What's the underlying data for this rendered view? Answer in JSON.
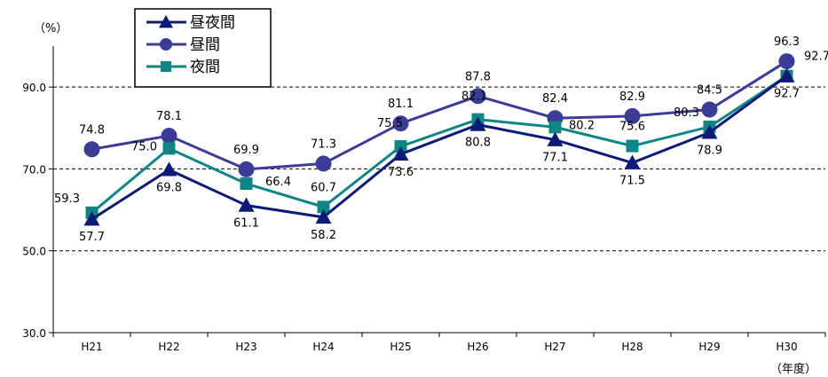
{
  "chart_data": {
    "type": "line",
    "ylabel": "（%）",
    "xlabel": "（年度）",
    "categories": [
      "H21",
      "H22",
      "H23",
      "H24",
      "H25",
      "H26",
      "H27",
      "H28",
      "H29",
      "H30"
    ],
    "ylim": [
      30,
      100
    ],
    "yticks": [
      "30.0",
      "50.0",
      "70.0",
      "90.0"
    ],
    "grid": "dashed horizontal at 50, 70, 90",
    "legend_position": "top-left",
    "series": [
      {
        "name": "昼夜間",
        "marker": "triangle",
        "color": "#0d1a78",
        "values": [
          57.7,
          69.8,
          61.1,
          58.2,
          73.6,
          80.8,
          77.1,
          71.5,
          78.9,
          92.7
        ],
        "labels": [
          "57.7",
          "69.8",
          "61.1",
          "58.2",
          "73.6",
          "80.8",
          "77.1",
          "71.5",
          "78.9",
          "92.7"
        ]
      },
      {
        "name": "昼間",
        "marker": "circle",
        "color": "#3b3c98",
        "values": [
          74.8,
          78.1,
          69.9,
          71.3,
          81.1,
          87.8,
          82.4,
          82.9,
          84.5,
          96.3
        ],
        "labels": [
          "74.8",
          "78.1",
          "69.9",
          "71.3",
          "81.1",
          "87.8",
          "82.4",
          "82.9",
          "84.5",
          "96.3"
        ]
      },
      {
        "name": "夜間",
        "marker": "square",
        "color": "#0f8585",
        "values": [
          59.3,
          75.0,
          66.4,
          60.7,
          75.5,
          82.1,
          80.2,
          75.6,
          80.3,
          92.7
        ],
        "labels": [
          "59.3",
          "75.0",
          "66.4",
          "60.7",
          "75.5",
          "82.1",
          "80.2",
          "75.6",
          "80.3",
          "92.7"
        ]
      }
    ]
  }
}
